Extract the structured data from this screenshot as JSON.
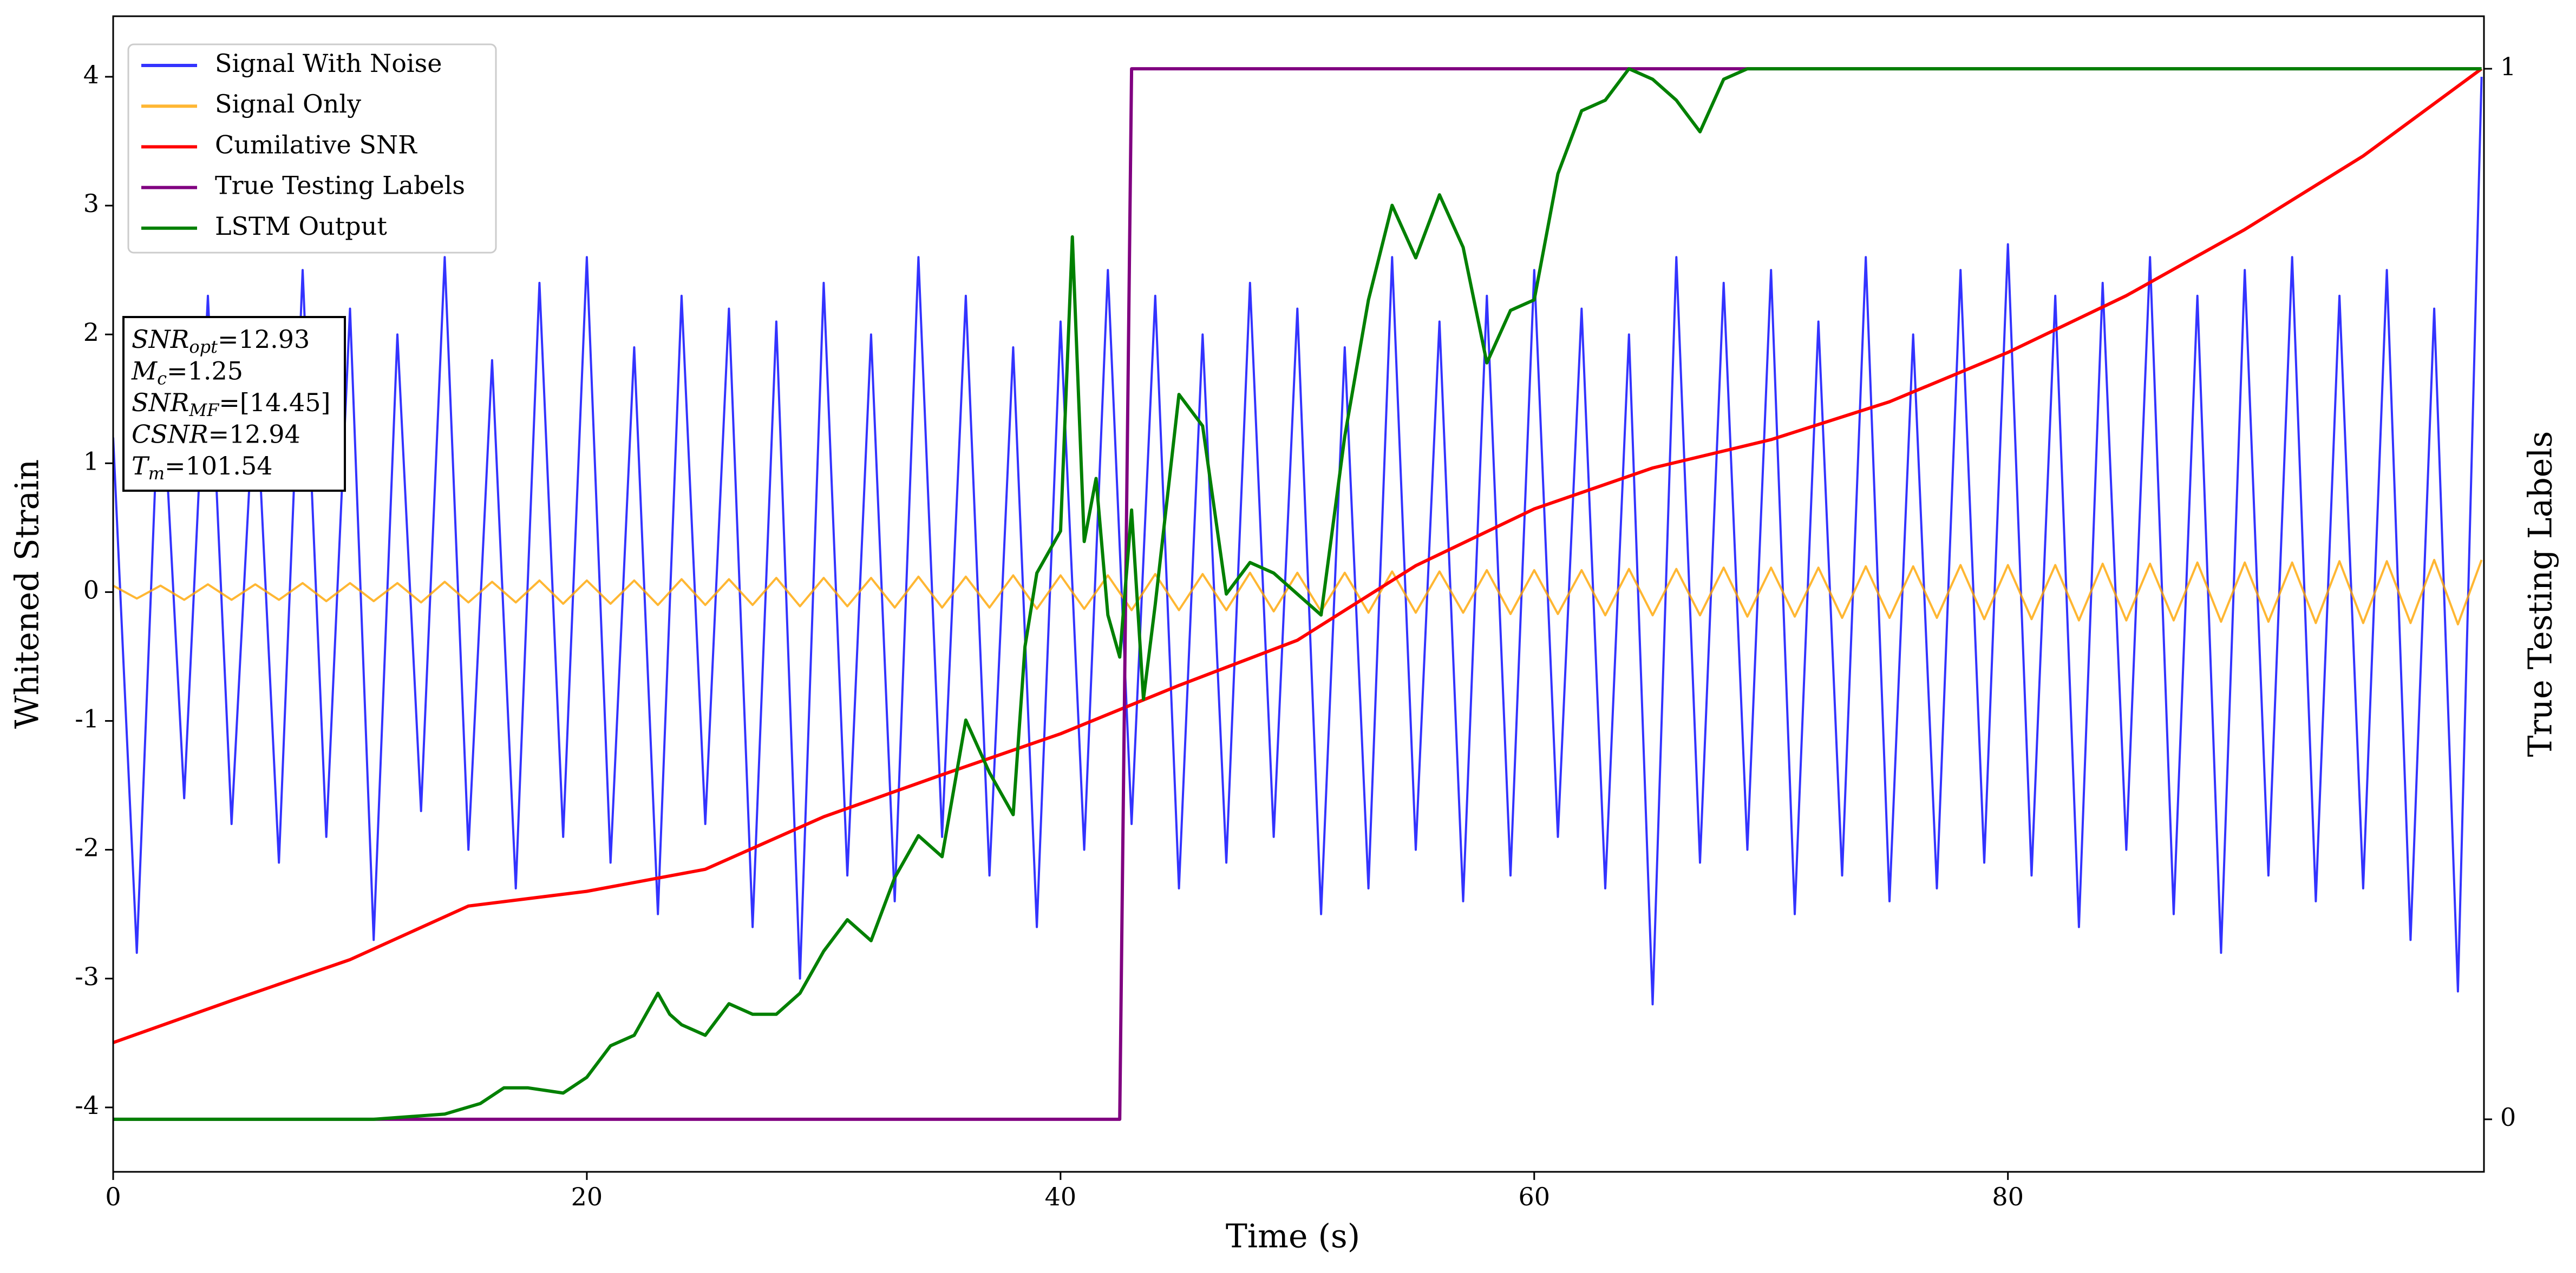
{
  "chart_data": {
    "type": "line",
    "xlabel": "Time (s)",
    "ylabel": "Whitened Strain",
    "y2label": "True Testing Labels",
    "xlim": [
      0,
      100.1
    ],
    "ylim": [
      -4.5,
      4.47
    ],
    "y2lim": [
      -0.05,
      1.05
    ],
    "xticks": [
      0,
      20,
      40,
      60,
      80
    ],
    "yticks": [
      -4,
      -3,
      -2,
      -1,
      0,
      1,
      2,
      3,
      4
    ],
    "y2ticks": [
      0,
      1
    ],
    "legend": "upper left",
    "x": [
      0,
      1,
      2,
      3,
      4,
      5,
      6,
      7,
      8,
      9,
      10,
      11,
      12,
      13,
      14,
      15,
      16,
      17,
      18,
      19,
      20,
      21,
      22,
      23,
      24,
      25,
      26,
      27,
      28,
      29,
      30,
      31,
      32,
      33,
      34,
      35,
      36,
      37,
      38,
      39,
      40,
      41,
      42,
      43,
      44,
      45,
      46,
      47,
      48,
      49,
      50,
      51,
      52,
      53,
      54,
      55,
      56,
      57,
      58,
      59,
      60,
      61,
      62,
      63,
      64,
      65,
      66,
      67,
      68,
      69,
      70,
      71,
      72,
      73,
      74,
      75,
      76,
      77,
      78,
      79,
      80,
      81,
      82,
      83,
      84,
      85,
      86,
      87,
      88,
      89,
      90,
      91,
      92,
      93,
      94,
      95,
      96,
      97,
      98,
      99,
      100
    ],
    "series": [
      {
        "name": "Signal With Noise",
        "color": "blue",
        "alpha": 0.8,
        "values": [
          1.2,
          -2.8,
          1.9,
          -1.6,
          2.3,
          -1.8,
          1.7,
          -2.1,
          2.5,
          -1.9,
          2.2,
          -2.7,
          2.0,
          -1.7,
          2.6,
          -2.0,
          1.8,
          -2.3,
          2.4,
          -1.9,
          2.6,
          -2.1,
          1.9,
          -2.5,
          2.3,
          -1.8,
          2.2,
          -2.6,
          2.1,
          -3.0,
          2.4,
          -2.2,
          2.0,
          -2.4,
          2.6,
          -1.9,
          2.3,
          -2.2,
          1.9,
          -2.6,
          2.1,
          -2.0,
          2.5,
          -1.8,
          2.3,
          -2.3,
          2.0,
          -2.1,
          2.4,
          -1.9,
          2.2,
          -2.5,
          1.9,
          -2.3,
          2.6,
          -2.0,
          2.1,
          -2.4,
          2.3,
          -2.2,
          2.5,
          -1.9,
          2.2,
          -2.3,
          2.0,
          -3.2,
          2.6,
          -2.1,
          2.4,
          -2.0,
          2.5,
          -2.5,
          2.1,
          -2.2,
          2.6,
          -2.4,
          2.0,
          -2.3,
          2.5,
          -2.1,
          2.7,
          -2.2,
          2.3,
          -2.6,
          2.4,
          -2.0,
          2.6,
          -2.5,
          2.3,
          -2.8,
          2.5,
          -2.2,
          2.6,
          -2.4,
          2.3,
          -2.3,
          2.5,
          -2.7,
          2.2,
          -3.1,
          4.0
        ]
      },
      {
        "name": "Signal Only",
        "color": "orange",
        "alpha": 0.8,
        "values": [
          0.05,
          -0.05,
          0.05,
          -0.06,
          0.06,
          -0.06,
          0.06,
          -0.06,
          0.07,
          -0.07,
          0.07,
          -0.07,
          0.07,
          -0.08,
          0.08,
          -0.08,
          0.08,
          -0.08,
          0.09,
          -0.09,
          0.09,
          -0.09,
          0.09,
          -0.1,
          0.1,
          -0.1,
          0.1,
          -0.1,
          0.11,
          -0.11,
          0.11,
          -0.11,
          0.11,
          -0.12,
          0.12,
          -0.12,
          0.12,
          -0.12,
          0.13,
          -0.13,
          0.13,
          -0.13,
          0.13,
          -0.14,
          0.14,
          -0.14,
          0.14,
          -0.14,
          0.15,
          -0.15,
          0.15,
          -0.15,
          0.15,
          -0.16,
          0.16,
          -0.16,
          0.16,
          -0.16,
          0.17,
          -0.17,
          0.17,
          -0.17,
          0.17,
          -0.18,
          0.18,
          -0.18,
          0.18,
          -0.18,
          0.19,
          -0.19,
          0.19,
          -0.19,
          0.19,
          -0.2,
          0.2,
          -0.2,
          0.2,
          -0.2,
          0.21,
          -0.21,
          0.21,
          -0.21,
          0.21,
          -0.22,
          0.22,
          -0.22,
          0.22,
          -0.22,
          0.23,
          -0.23,
          0.23,
          -0.23,
          0.23,
          -0.24,
          0.24,
          -0.24,
          0.24,
          -0.24,
          0.25,
          -0.25,
          0.25
        ]
      },
      {
        "name": "Cumilative SNR",
        "color": "red",
        "axis": "y2",
        "x": [
          0,
          5,
          10,
          15,
          20,
          25,
          30,
          35,
          40,
          45,
          50,
          55,
          60,
          65,
          70,
          75,
          80,
          85,
          90,
          95,
          100
        ],
        "values": [
          0.073,
          0.113,
          0.152,
          0.203,
          0.217,
          0.238,
          0.288,
          0.328,
          0.367,
          0.413,
          0.456,
          0.527,
          0.581,
          0.62,
          0.647,
          0.683,
          0.73,
          0.784,
          0.847,
          0.917,
          1.0
        ]
      },
      {
        "name": "True Testing Labels",
        "color": "purple",
        "axis": "y2",
        "x": [
          0,
          42.5,
          43,
          100
        ],
        "values": [
          0,
          0,
          1,
          1
        ]
      },
      {
        "name": "LSTM Output",
        "color": "green",
        "axis": "y2",
        "x": [
          0,
          11,
          14,
          15.5,
          16.5,
          17.5,
          19,
          20,
          21,
          22,
          23,
          23.5,
          24,
          25,
          26,
          27,
          28,
          29,
          30,
          31,
          32,
          33,
          34,
          35,
          36,
          37,
          38,
          38.5,
          39,
          40,
          40.5,
          41,
          41.5,
          42,
          42.5,
          43,
          43.5,
          44,
          45,
          46,
          46.5,
          47,
          48,
          49,
          50,
          51,
          52,
          53,
          54,
          55,
          56,
          57,
          58,
          59,
          60,
          61,
          62,
          63,
          64,
          65,
          66,
          67,
          68,
          69,
          70,
          72,
          75,
          100
        ],
        "values": [
          0,
          0,
          0.005,
          0.015,
          0.03,
          0.03,
          0.025,
          0.04,
          0.07,
          0.08,
          0.12,
          0.1,
          0.09,
          0.08,
          0.11,
          0.1,
          0.1,
          0.12,
          0.16,
          0.19,
          0.17,
          0.23,
          0.27,
          0.25,
          0.38,
          0.33,
          0.29,
          0.45,
          0.52,
          0.56,
          0.84,
          0.55,
          0.61,
          0.48,
          0.44,
          0.58,
          0.4,
          0.49,
          0.69,
          0.66,
          0.58,
          0.5,
          0.53,
          0.52,
          0.5,
          0.48,
          0.65,
          0.78,
          0.87,
          0.82,
          0.88,
          0.83,
          0.72,
          0.77,
          0.78,
          0.9,
          0.96,
          0.97,
          1.0,
          0.99,
          0.97,
          0.94,
          0.99,
          1.0,
          1.0,
          1.0,
          1.0,
          1.0
        ]
      }
    ],
    "annotations": [
      {
        "symbol": "SNR",
        "subscript": "opt",
        "text": "=12.93"
      },
      {
        "symbol": "M",
        "subscript": "c",
        "text": "=1.25"
      },
      {
        "symbol": "SNR",
        "subscript": "MF",
        "text": "=[14.45]"
      },
      {
        "symbol": "CSNR",
        "text": "=12.94"
      },
      {
        "symbol": "T",
        "subscript": "m",
        "text": "=101.54"
      }
    ]
  }
}
